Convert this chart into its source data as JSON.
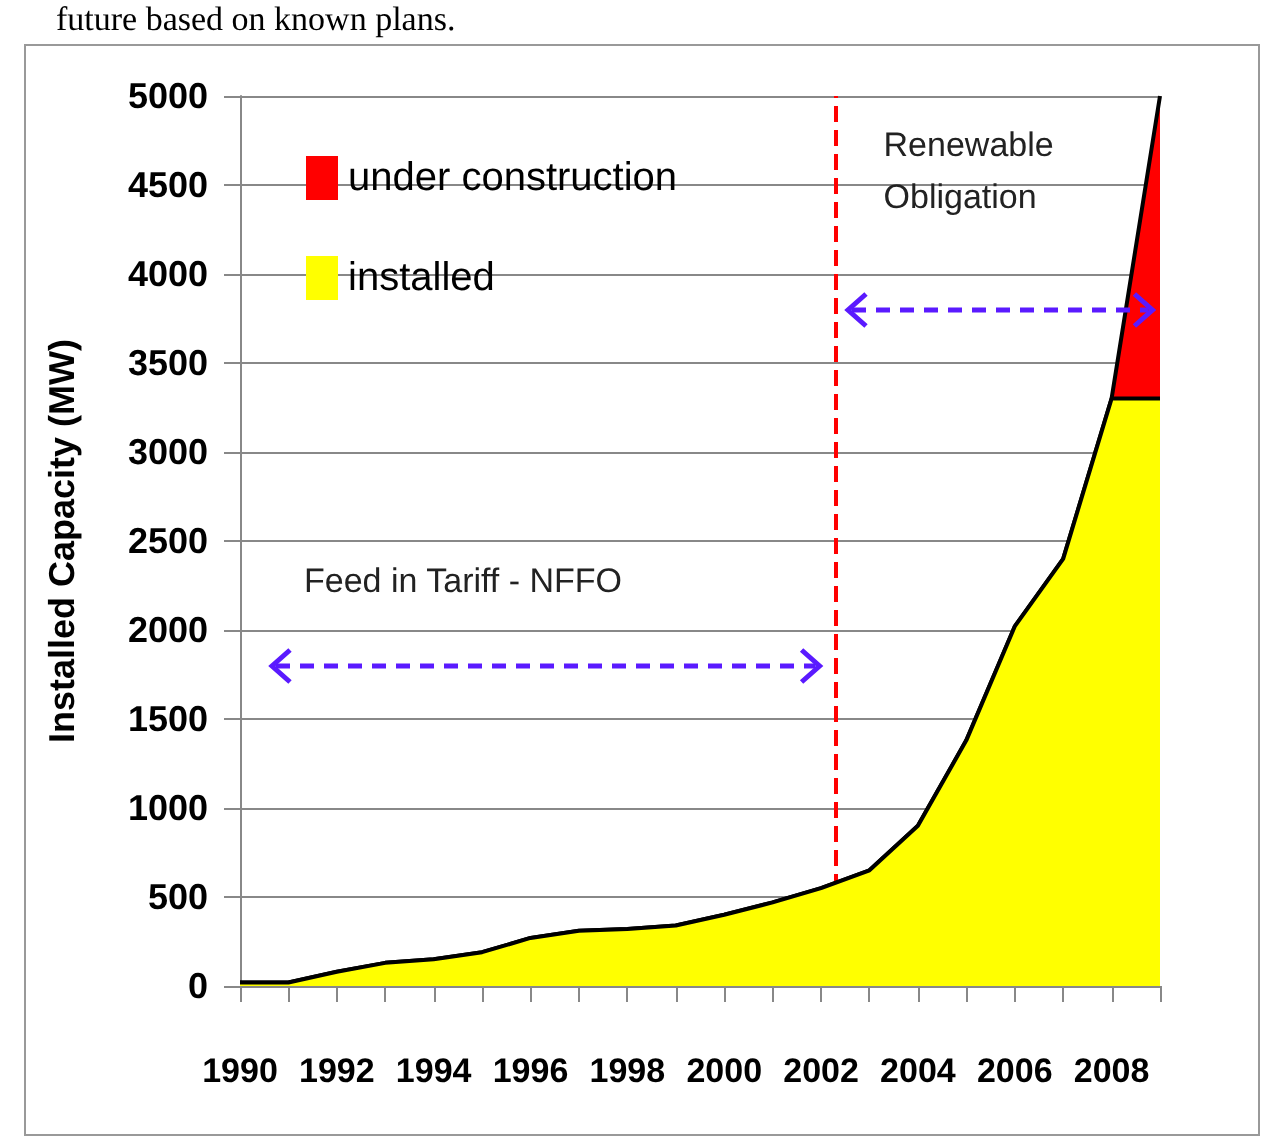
{
  "chart_data": {
    "type": "area",
    "stacked": true,
    "ylabel": "Installed Capacity (MW)",
    "x": [
      1990,
      1991,
      1992,
      1993,
      1994,
      1995,
      1996,
      1997,
      1998,
      1999,
      2000,
      2001,
      2002,
      2003,
      2004,
      2005,
      2006,
      2007,
      2008,
      2009
    ],
    "series": [
      {
        "name": "installed",
        "color": "#ffff00",
        "values": [
          20,
          20,
          80,
          130,
          150,
          190,
          270,
          310,
          320,
          340,
          400,
          470,
          550,
          650,
          900,
          1380,
          2020,
          2400,
          3300,
          3300
        ]
      },
      {
        "name": "under construction",
        "color": "#ff0000",
        "values": [
          0,
          0,
          0,
          0,
          0,
          0,
          0,
          0,
          0,
          0,
          0,
          0,
          0,
          0,
          0,
          0,
          0,
          0,
          0,
          1700
        ]
      }
    ],
    "xlim": [
      1990,
      2009
    ],
    "xticks": [
      1990,
      {
        "value": 1991,
        "label": null
      },
      1992,
      {
        "value": 1993,
        "label": null
      },
      1994,
      {
        "value": 1995,
        "label": null
      },
      1996,
      {
        "value": 1997,
        "label": null
      },
      1998,
      {
        "value": 1999,
        "label": null
      },
      2000,
      {
        "value": 2001,
        "label": null
      },
      2002,
      {
        "value": 2003,
        "label": null
      },
      2004,
      {
        "value": 2005,
        "label": null
      },
      2006,
      {
        "value": 2007,
        "label": null
      },
      2008,
      {
        "value": 2009,
        "label": null
      }
    ],
    "ylim": [
      0,
      5000
    ],
    "yticks": [
      0,
      500,
      1000,
      1500,
      2000,
      2500,
      3000,
      3500,
      4000,
      4500,
      5000
    ],
    "grid": "y",
    "legend": "top left",
    "ref_lines": [
      {
        "axis": "x",
        "value": 2002.3,
        "color": "#ff0000",
        "line_style": "dashed"
      }
    ],
    "annotations": [
      "future based on known plans.",
      "Feed in Tariff - NFFO",
      "Renewable Obligation"
    ]
  }
}
